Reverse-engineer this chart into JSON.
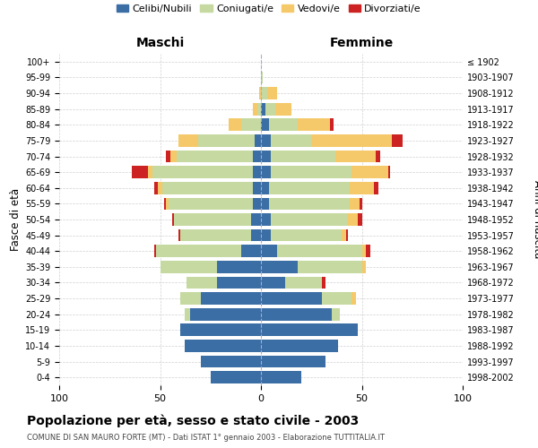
{
  "age_groups": [
    "0-4",
    "5-9",
    "10-14",
    "15-19",
    "20-24",
    "25-29",
    "30-34",
    "35-39",
    "40-44",
    "45-49",
    "50-54",
    "55-59",
    "60-64",
    "65-69",
    "70-74",
    "75-79",
    "80-84",
    "85-89",
    "90-94",
    "95-99",
    "100+"
  ],
  "birth_years": [
    "1998-2002",
    "1993-1997",
    "1988-1992",
    "1983-1987",
    "1978-1982",
    "1973-1977",
    "1968-1972",
    "1963-1967",
    "1958-1962",
    "1953-1957",
    "1948-1952",
    "1943-1947",
    "1938-1942",
    "1933-1937",
    "1928-1932",
    "1923-1927",
    "1918-1922",
    "1913-1917",
    "1908-1912",
    "1903-1907",
    "≤ 1902"
  ],
  "colors": {
    "celibi": "#3a6ea5",
    "coniugati": "#c5d9a0",
    "vedovi": "#f5c96a",
    "divorziati": "#cc2222"
  },
  "maschi": {
    "celibi": [
      25,
      30,
      38,
      40,
      35,
      30,
      22,
      22,
      10,
      5,
      5,
      4,
      4,
      4,
      4,
      3,
      0,
      0,
      0,
      0,
      0
    ],
    "coniugati": [
      0,
      0,
      0,
      0,
      3,
      10,
      15,
      28,
      42,
      35,
      38,
      42,
      45,
      50,
      38,
      28,
      10,
      2,
      0,
      0,
      0
    ],
    "vedovi": [
      0,
      0,
      0,
      0,
      0,
      0,
      0,
      0,
      0,
      0,
      0,
      1,
      2,
      2,
      3,
      10,
      6,
      2,
      1,
      0,
      0
    ],
    "divorziati": [
      0,
      0,
      0,
      0,
      0,
      0,
      0,
      0,
      1,
      1,
      1,
      1,
      2,
      8,
      2,
      0,
      0,
      0,
      0,
      0,
      0
    ]
  },
  "femmine": {
    "celibi": [
      20,
      32,
      38,
      48,
      35,
      30,
      12,
      18,
      8,
      5,
      5,
      4,
      4,
      5,
      5,
      5,
      4,
      2,
      0,
      0,
      0
    ],
    "coniugati": [
      0,
      0,
      0,
      0,
      4,
      15,
      18,
      32,
      42,
      35,
      38,
      40,
      40,
      40,
      32,
      20,
      14,
      5,
      3,
      1,
      0
    ],
    "vedovi": [
      0,
      0,
      0,
      0,
      0,
      2,
      0,
      2,
      2,
      2,
      5,
      5,
      12,
      18,
      20,
      40,
      16,
      8,
      5,
      0,
      0
    ],
    "divorziati": [
      0,
      0,
      0,
      0,
      0,
      0,
      2,
      0,
      2,
      1,
      2,
      1,
      2,
      1,
      2,
      5,
      2,
      0,
      0,
      0,
      0
    ]
  },
  "title": "Popolazione per età, sesso e stato civile - 2003",
  "subtitle": "COMUNE DI SAN MAURO FORTE (MT) - Dati ISTAT 1° gennaio 2003 - Elaborazione TUTTITALIA.IT",
  "xlabel_left": "Maschi",
  "xlabel_right": "Femmine",
  "ylabel_left": "Fasce di età",
  "ylabel_right": "Anni di nascita",
  "xlim": 100,
  "legend_labels": [
    "Celibi/Nubili",
    "Coniugati/e",
    "Vedovi/e",
    "Divorziati/e"
  ],
  "bg_color": "#ffffff",
  "grid_color": "#cccccc"
}
